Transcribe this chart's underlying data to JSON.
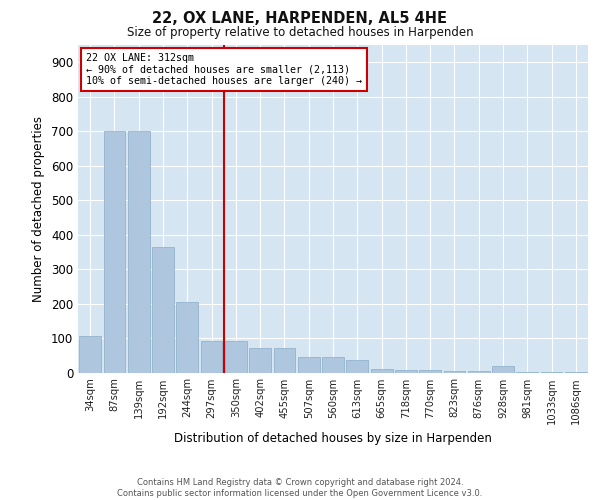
{
  "title1": "22, OX LANE, HARPENDEN, AL5 4HE",
  "title2": "Size of property relative to detached houses in Harpenden",
  "xlabel": "Distribution of detached houses by size in Harpenden",
  "ylabel": "Number of detached properties",
  "footnote1": "Contains HM Land Registry data © Crown copyright and database right 2024.",
  "footnote2": "Contains public sector information licensed under the Open Government Licence v3.0.",
  "annotation_line1": "22 OX LANE: 312sqm",
  "annotation_line2": "← 90% of detached houses are smaller (2,113)",
  "annotation_line3": "10% of semi-detached houses are larger (240) →",
  "bar_color": "#aec6de",
  "bar_edge_color": "#8aaec8",
  "red_line_color": "#cc0000",
  "annotation_box_color": "#ffffff",
  "annotation_border_color": "#cc0000",
  "background_color": "#d5e5f2",
  "categories": [
    "34sqm",
    "87sqm",
    "139sqm",
    "192sqm",
    "244sqm",
    "297sqm",
    "350sqm",
    "402sqm",
    "455sqm",
    "507sqm",
    "560sqm",
    "613sqm",
    "665sqm",
    "718sqm",
    "770sqm",
    "823sqm",
    "876sqm",
    "928sqm",
    "981sqm",
    "1033sqm",
    "1086sqm"
  ],
  "values": [
    105,
    700,
    700,
    365,
    205,
    90,
    90,
    70,
    70,
    45,
    45,
    35,
    10,
    8,
    8,
    3,
    3,
    18,
    2,
    2,
    2
  ],
  "red_line_x": 5.5,
  "ylim": [
    0,
    950
  ],
  "yticks": [
    0,
    100,
    200,
    300,
    400,
    500,
    600,
    700,
    800,
    900
  ],
  "figwidth": 6.0,
  "figheight": 5.0,
  "dpi": 100
}
